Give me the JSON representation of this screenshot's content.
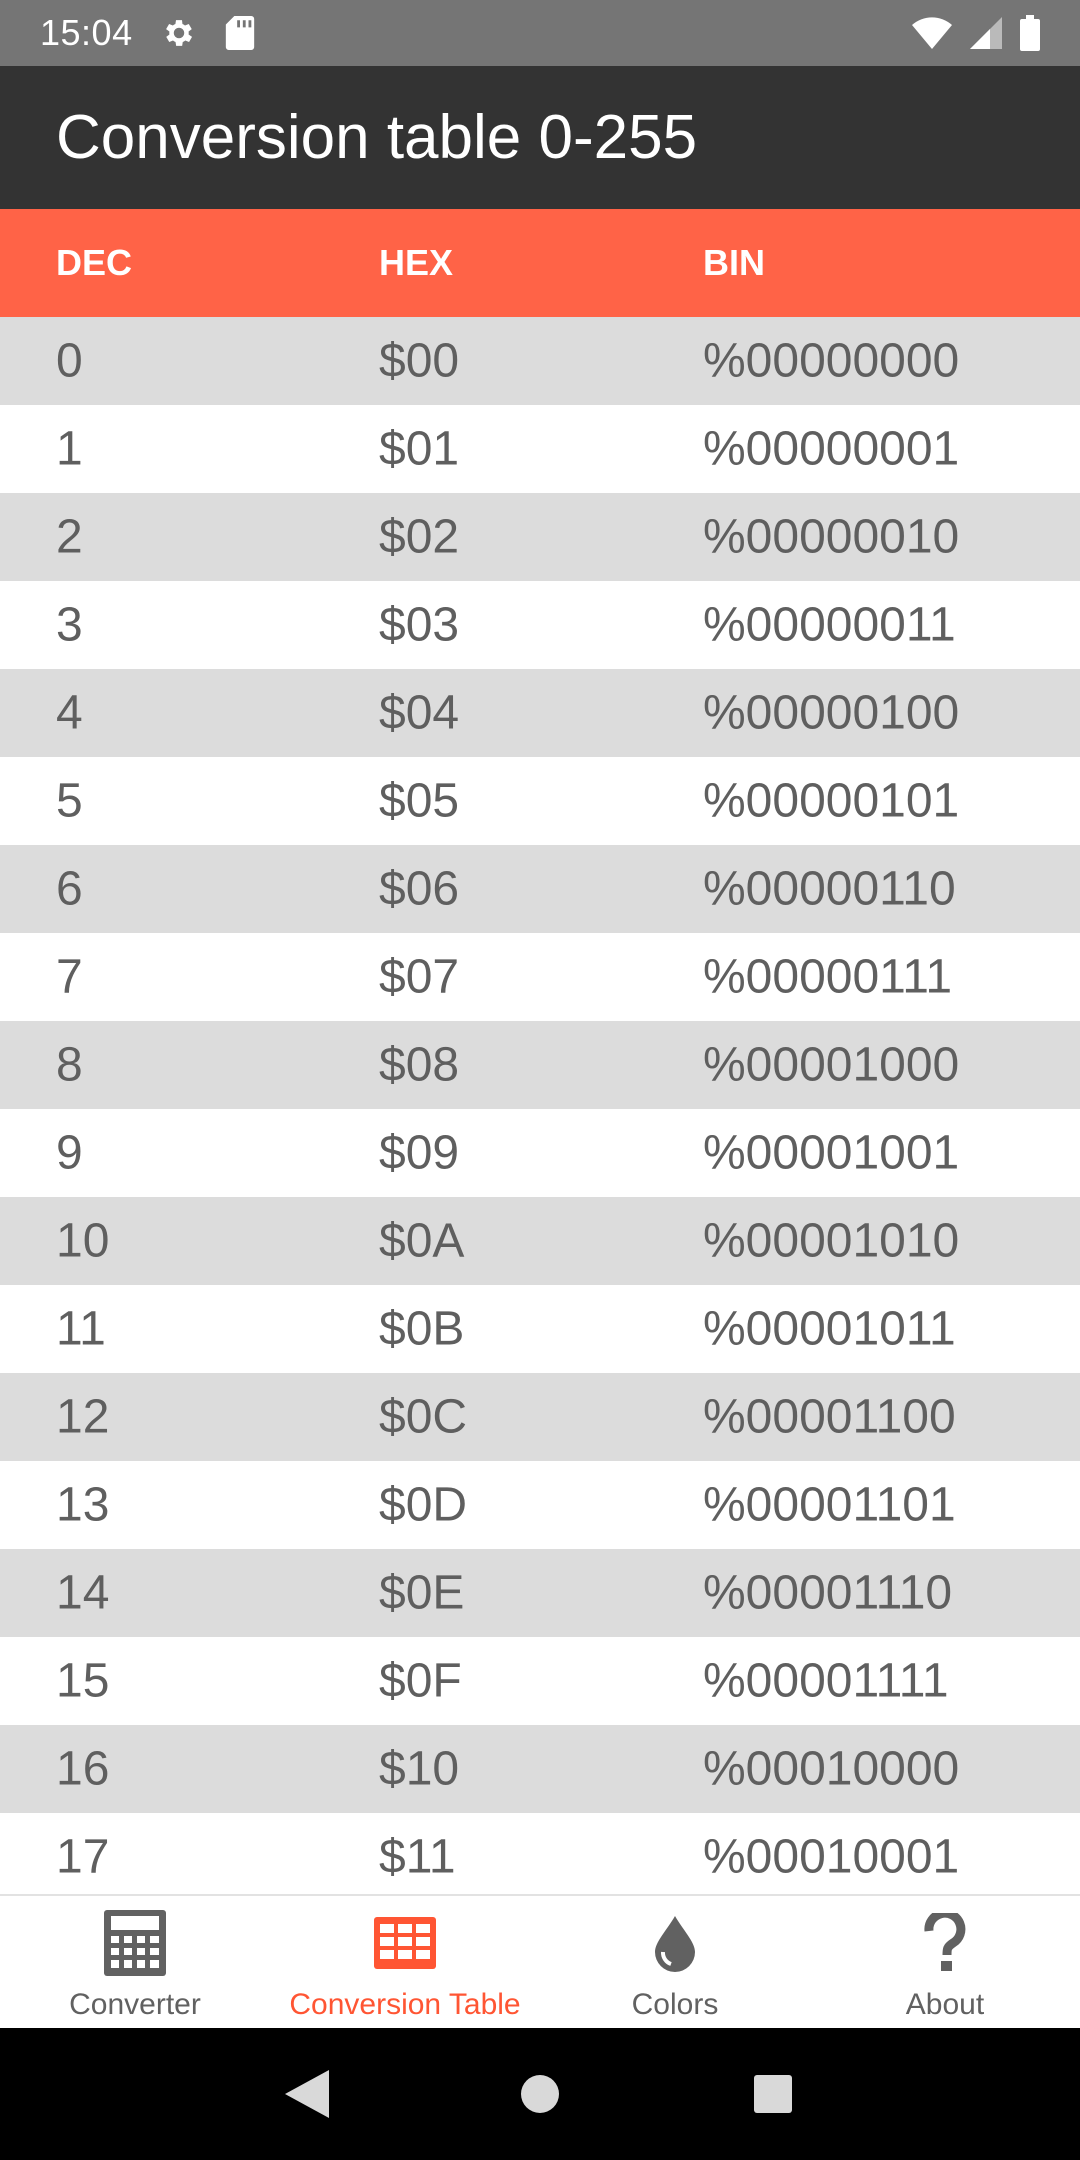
{
  "status_bar": {
    "time": "15:04",
    "icons_left": [
      "gear-icon",
      "sd-card-icon"
    ],
    "icons_right": [
      "wifi-icon",
      "signal-icon",
      "battery-icon"
    ]
  },
  "app_bar": {
    "title": "Conversion table 0-255"
  },
  "table": {
    "headers": [
      "DEC",
      "HEX",
      "BIN"
    ],
    "rows": [
      {
        "dec": "0",
        "hex": "$00",
        "bin": "%00000000"
      },
      {
        "dec": "1",
        "hex": "$01",
        "bin": "%00000001"
      },
      {
        "dec": "2",
        "hex": "$02",
        "bin": "%00000010"
      },
      {
        "dec": "3",
        "hex": "$03",
        "bin": "%00000011"
      },
      {
        "dec": "4",
        "hex": "$04",
        "bin": "%00000100"
      },
      {
        "dec": "5",
        "hex": "$05",
        "bin": "%00000101"
      },
      {
        "dec": "6",
        "hex": "$06",
        "bin": "%00000110"
      },
      {
        "dec": "7",
        "hex": "$07",
        "bin": "%00000111"
      },
      {
        "dec": "8",
        "hex": "$08",
        "bin": "%00001000"
      },
      {
        "dec": "9",
        "hex": "$09",
        "bin": "%00001001"
      },
      {
        "dec": "10",
        "hex": "$0A",
        "bin": "%00001010"
      },
      {
        "dec": "11",
        "hex": "$0B",
        "bin": "%00001011"
      },
      {
        "dec": "12",
        "hex": "$0C",
        "bin": "%00001100"
      },
      {
        "dec": "13",
        "hex": "$0D",
        "bin": "%00001101"
      },
      {
        "dec": "14",
        "hex": "$0E",
        "bin": "%00001110"
      },
      {
        "dec": "15",
        "hex": "$0F",
        "bin": "%00001111"
      },
      {
        "dec": "16",
        "hex": "$10",
        "bin": "%00010000"
      },
      {
        "dec": "17",
        "hex": "$11",
        "bin": "%00010001"
      }
    ]
  },
  "bottom_nav": {
    "items": [
      {
        "label": "Converter",
        "icon": "calculator-icon",
        "active": false
      },
      {
        "label": "Conversion Table",
        "icon": "table-icon",
        "active": true
      },
      {
        "label": "Colors",
        "icon": "droplet-icon",
        "active": false
      },
      {
        "label": "About",
        "icon": "question-icon",
        "active": false
      }
    ]
  },
  "colors": {
    "accent": "#ff6347",
    "active_nav": "#ff5533",
    "app_bar": "#333333",
    "status_bar": "#757575",
    "row_shade": "#dcdcdc",
    "text": "#5f5f5f"
  },
  "system_nav": {
    "buttons": [
      "back-icon",
      "home-icon",
      "recents-icon"
    ]
  }
}
